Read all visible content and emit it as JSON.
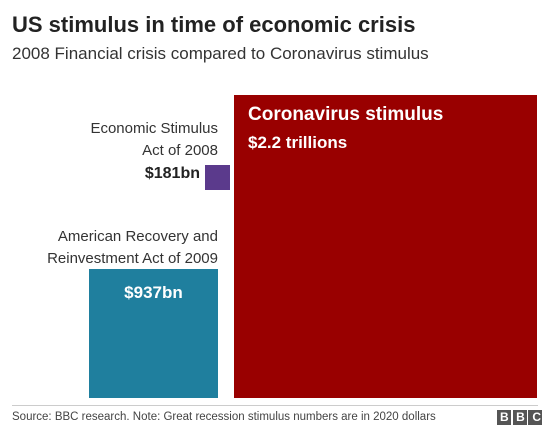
{
  "chart_data": {
    "type": "area",
    "title": "US stimulus in time of economic crisis",
    "subtitle": "2008 Financial crisis compared to Coronavirus stimulus",
    "categories": [
      "Economic Stimulus Act of 2008",
      "American Recovery and Reinvestment Act of 2009",
      "Coronavirus stimulus"
    ],
    "values": [
      181,
      937,
      2200
    ],
    "value_labels": [
      "$181bn",
      "$937bn",
      "$2.2 trillions"
    ],
    "colors": [
      "#5b3a8c",
      "#1f7f9e",
      "#990000"
    ]
  },
  "footer": {
    "source": "Source: BBC research. Note: Great recession stimulus numbers are in 2020 dollars",
    "logo": "BBC"
  }
}
